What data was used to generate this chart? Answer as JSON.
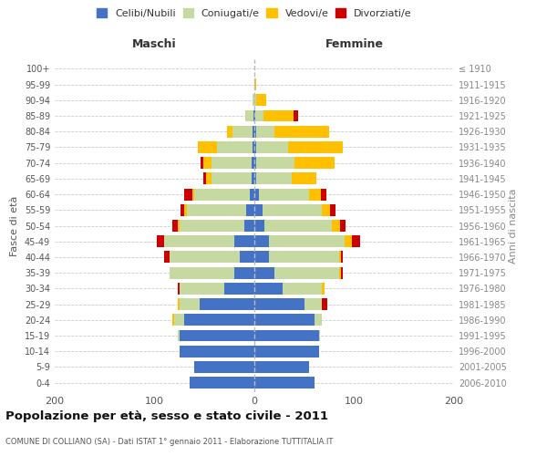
{
  "age_groups": [
    "0-4",
    "5-9",
    "10-14",
    "15-19",
    "20-24",
    "25-29",
    "30-34",
    "35-39",
    "40-44",
    "45-49",
    "50-54",
    "55-59",
    "60-64",
    "65-69",
    "70-74",
    "75-79",
    "80-84",
    "85-89",
    "90-94",
    "95-99",
    "100+"
  ],
  "birth_years": [
    "2006-2010",
    "2001-2005",
    "1996-2000",
    "1991-1995",
    "1986-1990",
    "1981-1985",
    "1976-1980",
    "1971-1975",
    "1966-1970",
    "1961-1965",
    "1956-1960",
    "1951-1955",
    "1946-1950",
    "1941-1945",
    "1936-1940",
    "1931-1935",
    "1926-1930",
    "1921-1925",
    "1916-1920",
    "1911-1915",
    "≤ 1910"
  ],
  "maschi": {
    "celibi": [
      65,
      60,
      75,
      75,
      70,
      55,
      30,
      20,
      15,
      20,
      10,
      8,
      5,
      3,
      3,
      2,
      2,
      1,
      0,
      0,
      0
    ],
    "coniugati": [
      0,
      0,
      0,
      2,
      10,
      20,
      45,
      65,
      70,
      70,
      65,
      60,
      55,
      40,
      40,
      35,
      20,
      8,
      2,
      0,
      0
    ],
    "vedovi": [
      0,
      0,
      0,
      0,
      2,
      2,
      0,
      0,
      0,
      0,
      2,
      2,
      2,
      5,
      8,
      20,
      5,
      0,
      0,
      0,
      0
    ],
    "divorziati": [
      0,
      0,
      0,
      0,
      0,
      0,
      2,
      0,
      5,
      8,
      5,
      4,
      8,
      3,
      3,
      0,
      0,
      0,
      0,
      0,
      0
    ]
  },
  "femmine": {
    "nubili": [
      60,
      55,
      65,
      65,
      60,
      50,
      28,
      20,
      15,
      15,
      10,
      8,
      5,
      2,
      2,
      2,
      2,
      1,
      0,
      0,
      0
    ],
    "coniugate": [
      0,
      0,
      0,
      1,
      8,
      18,
      40,
      65,
      70,
      75,
      68,
      60,
      50,
      35,
      38,
      32,
      18,
      8,
      2,
      0,
      0
    ],
    "vedove": [
      0,
      0,
      0,
      0,
      0,
      0,
      2,
      2,
      2,
      8,
      8,
      8,
      12,
      25,
      40,
      55,
      55,
      30,
      10,
      2,
      0
    ],
    "divorziate": [
      0,
      0,
      0,
      0,
      0,
      5,
      0,
      2,
      2,
      8,
      5,
      5,
      5,
      0,
      0,
      0,
      0,
      5,
      0,
      0,
      0
    ]
  },
  "color_celibi": "#4472c4",
  "color_coniugati": "#c5d9a0",
  "color_vedovi": "#ffc000",
  "color_divorziati": "#cc0000",
  "xlim": 200,
  "title": "Popolazione per età, sesso e stato civile - 2011",
  "subtitle": "COMUNE DI COLLIANO (SA) - Dati ISTAT 1° gennaio 2011 - Elaborazione TUTTITALIA.IT",
  "ylabel_left": "Fasce di età",
  "ylabel_right": "Anni di nascita",
  "xlabel_maschi": "Maschi",
  "xlabel_femmine": "Femmine",
  "legend_labels": [
    "Celibi/Nubili",
    "Coniugati/e",
    "Vedovi/e",
    "Divorziati/e"
  ],
  "bg_color": "#ffffff",
  "bar_height": 0.75
}
